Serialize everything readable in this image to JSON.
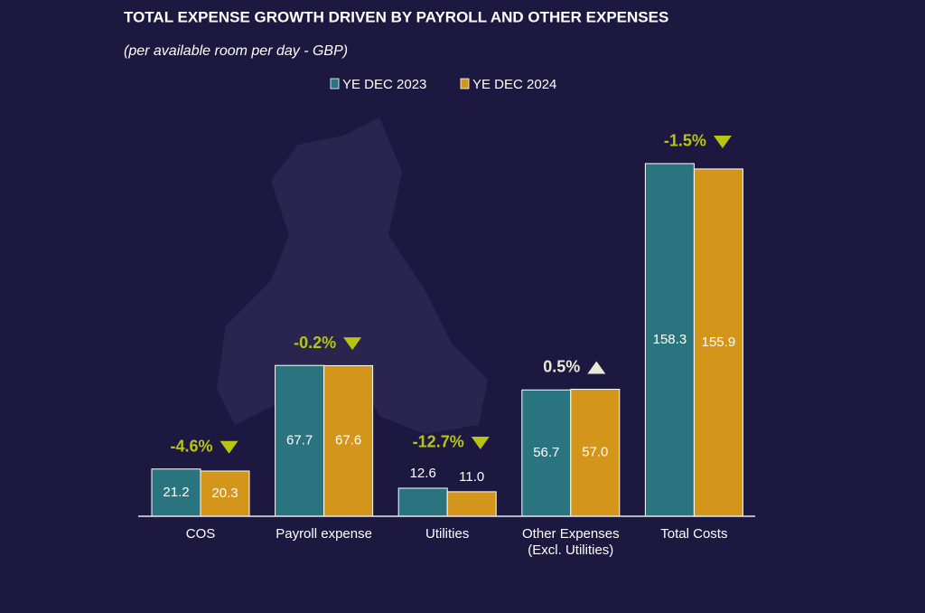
{
  "chart_data": {
    "type": "bar",
    "title": "TOTAL EXPENSE GROWTH DRIVEN BY PAYROLL AND OTHER EXPENSES",
    "subtitle": "(per available room per day - GBP)",
    "categories": [
      "COS",
      "Payroll expense",
      "Utilities",
      "Other Expenses (Excl. Utilities)",
      "Total Costs"
    ],
    "series": [
      {
        "name": "YE DEC 2023",
        "color": "#2a7480",
        "values": [
          21.2,
          67.7,
          12.6,
          56.7,
          158.3
        ],
        "value_labels": [
          "21.2",
          "67.7",
          "12.6",
          "56.7",
          "158.3"
        ]
      },
      {
        "name": "YE DEC 2024",
        "color": "#d4961a",
        "values": [
          20.3,
          67.6,
          11.0,
          57.0,
          155.9
        ],
        "value_labels": [
          "20.3",
          "67.6",
          "11.0",
          "57.0",
          "155.9"
        ]
      }
    ],
    "annotations": [
      {
        "text": "-4.6%",
        "direction": "down",
        "color": "#b8c412"
      },
      {
        "text": "-0.2%",
        "direction": "down",
        "color": "#b8c412"
      },
      {
        "text": "-12.7%",
        "direction": "down",
        "color": "#b8c412"
      },
      {
        "text": "0.5%",
        "direction": "up",
        "color": "#ece8d8"
      },
      {
        "text": "-1.5%",
        "direction": "down",
        "color": "#b8c412"
      }
    ],
    "legend": "top"
  }
}
